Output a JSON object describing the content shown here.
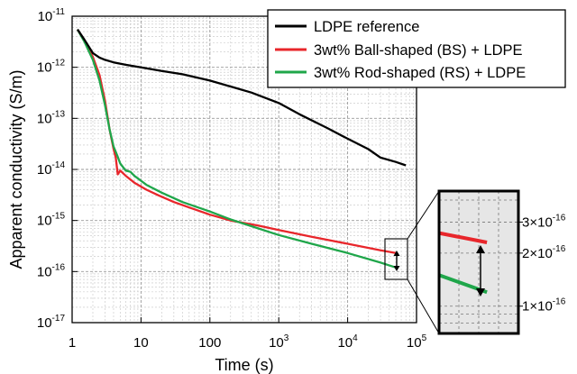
{
  "chart_data": {
    "type": "line",
    "title": "",
    "xlabel": "Time (s)",
    "ylabel": "Apparent conductivity (S/m)",
    "xscale": "log",
    "yscale": "log",
    "xlim": [
      1,
      100000
    ],
    "ylim": [
      1e-17,
      1e-11
    ],
    "grid": true,
    "legend_position": "top-right",
    "x_ticks": [
      {
        "value": 1,
        "base": "1",
        "exp": ""
      },
      {
        "value": 10,
        "base": "10",
        "exp": ""
      },
      {
        "value": 100,
        "base": "100",
        "exp": ""
      },
      {
        "value": 1000,
        "base": "10",
        "exp": "3"
      },
      {
        "value": 10000,
        "base": "10",
        "exp": "4"
      },
      {
        "value": 100000,
        "base": "10",
        "exp": "5"
      }
    ],
    "y_ticks": [
      {
        "value": 1e-11,
        "base": "10",
        "exp": "-11"
      },
      {
        "value": 1e-12,
        "base": "10",
        "exp": "-12"
      },
      {
        "value": 1e-13,
        "base": "10",
        "exp": "-13"
      },
      {
        "value": 1e-14,
        "base": "10",
        "exp": "-14"
      },
      {
        "value": 1e-15,
        "base": "10",
        "exp": "-15"
      },
      {
        "value": 1e-16,
        "base": "10",
        "exp": "-16"
      },
      {
        "value": 1e-17,
        "base": "10",
        "exp": "-17"
      }
    ],
    "series": [
      {
        "name": "LDPE reference",
        "color": "#000000",
        "points": [
          [
            1.2,
            5.5e-12
          ],
          [
            1.5,
            3.5e-12
          ],
          [
            2,
            1.9e-12
          ],
          [
            2.5,
            1.55e-12
          ],
          [
            3,
            1.4e-12
          ],
          [
            4,
            1.25e-12
          ],
          [
            6,
            1.12e-12
          ],
          [
            10,
            1e-12
          ],
          [
            20,
            8.5e-13
          ],
          [
            40,
            7.3e-13
          ],
          [
            100,
            5.5e-13
          ],
          [
            200,
            4.2e-13
          ],
          [
            400,
            3.2e-13
          ],
          [
            1000,
            2e-13
          ],
          [
            2000,
            1.2e-13
          ],
          [
            5000,
            6.5e-14
          ],
          [
            10000,
            4e-14
          ],
          [
            20000,
            2.5e-14
          ],
          [
            30000,
            1.7e-14
          ],
          [
            50000,
            1.4e-14
          ],
          [
            70000,
            1.2e-14
          ]
        ]
      },
      {
        "name": "3wt% Ball-shaped (BS) + LDPE",
        "color": "#e8262b",
        "points": [
          [
            1.2,
            5.5e-12
          ],
          [
            1.5,
            3.3e-12
          ],
          [
            2,
            1.6e-12
          ],
          [
            2.5,
            7e-13
          ],
          [
            3,
            2.2e-13
          ],
          [
            3.5,
            6e-14
          ],
          [
            4,
            2.5e-14
          ],
          [
            4.3,
            1.7e-14
          ],
          [
            4.6,
            8e-15
          ],
          [
            5,
            9.5e-15
          ],
          [
            6,
            7.5e-15
          ],
          [
            8,
            5.5e-15
          ],
          [
            12,
            4e-15
          ],
          [
            18,
            3.1e-15
          ],
          [
            30,
            2.3e-15
          ],
          [
            50,
            1.8e-15
          ],
          [
            100,
            1.3e-15
          ],
          [
            200,
            1e-15
          ],
          [
            500,
            8e-16
          ],
          [
            1000,
            6.5e-16
          ],
          [
            3000,
            4.8e-16
          ],
          [
            10000,
            3.5e-16
          ],
          [
            30000,
            2.6e-16
          ],
          [
            50000,
            2.3e-16
          ]
        ]
      },
      {
        "name": "3wt% Rod-shaped (RS) + LDPE",
        "color": "#1fa64a",
        "points": [
          [
            1.2,
            5.5e-12
          ],
          [
            1.5,
            3.2e-12
          ],
          [
            2,
            1.4e-12
          ],
          [
            2.5,
            5.5e-13
          ],
          [
            3,
            1.8e-13
          ],
          [
            3.5,
            6e-14
          ],
          [
            4,
            2.8e-14
          ],
          [
            4.5,
            1.9e-14
          ],
          [
            5,
            1.3e-14
          ],
          [
            6,
            9.5e-15
          ],
          [
            7,
            9e-15
          ],
          [
            8,
            7.5e-15
          ],
          [
            12,
            5e-15
          ],
          [
            20,
            3.5e-15
          ],
          [
            40,
            2.3e-15
          ],
          [
            100,
            1.5e-15
          ],
          [
            200,
            1.05e-15
          ],
          [
            500,
            7e-16
          ],
          [
            1000,
            5.2e-16
          ],
          [
            3000,
            3.5e-16
          ],
          [
            10000,
            2.3e-16
          ],
          [
            30000,
            1.5e-16
          ],
          [
            50000,
            1.2e-16
          ]
        ]
      }
    ],
    "inset": {
      "y_ticks": [
        {
          "value": 3e-16,
          "label": "3×10",
          "exp": "-16"
        },
        {
          "value": 2e-16,
          "label": "2×10",
          "exp": "-16"
        },
        {
          "value": 1e-16,
          "label": "1×10",
          "exp": "-16"
        }
      ],
      "xlim": [
        30000,
        70000
      ],
      "ylim": [
        7e-17,
        4.5e-16
      ]
    }
  }
}
